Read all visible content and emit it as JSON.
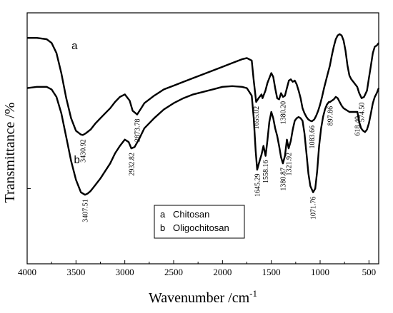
{
  "chart_data": {
    "type": "line",
    "title": "",
    "xlabel": "Wavenumber /cm",
    "xlabel_superscript": "-1",
    "ylabel": "Transmittance /%",
    "xlim": [
      4000,
      400
    ],
    "x_reversed": true,
    "x_ticks": [
      4000,
      3500,
      3000,
      2500,
      2000,
      1500,
      1000,
      500
    ],
    "x_tick_labels": [
      "4000",
      "3500",
      "3000",
      "2500",
      "2000",
      "1500",
      "1000",
      "500"
    ],
    "ylim": [
      0,
      100
    ],
    "y_ticks": [
      90,
      30
    ],
    "grid": false,
    "legend_placement": "bottom-center",
    "series": [
      {
        "name": "Chitosan",
        "label": "a",
        "x": [
          4000,
          3900,
          3800,
          3750,
          3700,
          3650,
          3600,
          3550,
          3500,
          3450,
          3430,
          3400,
          3350,
          3300,
          3250,
          3200,
          3150,
          3100,
          3050,
          3000,
          2950,
          2920,
          2874,
          2840,
          2800,
          2700,
          2600,
          2500,
          2400,
          2300,
          2200,
          2100,
          2000,
          1900,
          1800,
          1750,
          1700,
          1680,
          1655,
          1630,
          1600,
          1590,
          1560,
          1540,
          1520,
          1500,
          1480,
          1460,
          1440,
          1420,
          1400,
          1380,
          1360,
          1340,
          1320,
          1300,
          1280,
          1260,
          1240,
          1220,
          1200,
          1180,
          1160,
          1140,
          1120,
          1100,
          1084,
          1060,
          1040,
          1020,
          1000,
          980,
          960,
          940,
          920,
          900,
          880,
          860,
          840,
          820,
          800,
          780,
          760,
          740,
          720,
          700,
          680,
          660,
          640,
          620,
          600,
          575,
          550,
          520,
          500,
          480,
          460,
          440,
          420,
          400
        ],
        "y": [
          90,
          90,
          89.5,
          88,
          84,
          76,
          66,
          58,
          53,
          51.5,
          51.3,
          52,
          53.5,
          56,
          58,
          60,
          62,
          64.5,
          66.5,
          67.5,
          65,
          61,
          59.5,
          61.5,
          64,
          67,
          69.5,
          71,
          72.5,
          74,
          75.5,
          77,
          78.5,
          80,
          81.5,
          82,
          81,
          73,
          64.5,
          66,
          67.5,
          66,
          69,
          72,
          74,
          76,
          74.5,
          70,
          66,
          65.5,
          68,
          66.5,
          67,
          70,
          73,
          73.5,
          72.5,
          73,
          71.5,
          69,
          66,
          62,
          60,
          58.5,
          57.5,
          57,
          56.8,
          57.5,
          59,
          61,
          63.5,
          66.5,
          70,
          73,
          76,
          79,
          83,
          86.5,
          89.5,
          91,
          91.5,
          91,
          89,
          85,
          79,
          75,
          73.5,
          72.5,
          71.5,
          70.5,
          68,
          66,
          66.5,
          69,
          74,
          79,
          84,
          86.5,
          87,
          88
        ]
      },
      {
        "name": "Oligochitosan",
        "label": "b",
        "x": [
          4000,
          3900,
          3800,
          3750,
          3700,
          3650,
          3600,
          3550,
          3500,
          3450,
          3407,
          3380,
          3350,
          3300,
          3250,
          3200,
          3150,
          3100,
          3050,
          3000,
          2960,
          2933,
          2900,
          2850,
          2800,
          2700,
          2600,
          2500,
          2400,
          2300,
          2200,
          2100,
          2000,
          1900,
          1800,
          1750,
          1700,
          1680,
          1660,
          1645,
          1620,
          1600,
          1580,
          1558,
          1540,
          1520,
          1500,
          1480,
          1460,
          1440,
          1420,
          1400,
          1381,
          1360,
          1340,
          1322,
          1300,
          1280,
          1260,
          1240,
          1220,
          1200,
          1180,
          1160,
          1140,
          1120,
          1100,
          1072,
          1050,
          1030,
          1010,
          990,
          970,
          950,
          930,
          910,
          898,
          880,
          860,
          840,
          820,
          800,
          780,
          760,
          740,
          720,
          700,
          680,
          660,
          640,
          618,
          600,
          580,
          560,
          540,
          520,
          500,
          480,
          460,
          440,
          420,
          400
        ],
        "y": [
          70,
          70.5,
          70.5,
          69.5,
          66.5,
          60,
          50.5,
          41,
          33.5,
          28.5,
          27.5,
          28,
          29,
          31.5,
          34,
          37,
          40,
          44,
          47,
          49.5,
          48.5,
          46,
          46.5,
          50,
          54,
          58,
          61.5,
          64,
          66,
          67.5,
          68.5,
          69.5,
          70.5,
          70.8,
          70.5,
          70,
          67,
          58,
          45,
          37.5,
          41,
          43.5,
          47,
          43,
          49,
          56.5,
          60.5,
          58,
          54,
          51,
          47,
          42.5,
          40,
          43,
          49.5,
          46,
          49,
          53.5,
          57,
          58,
          58.5,
          58,
          57,
          52,
          44,
          36,
          31,
          28.5,
          30,
          37,
          47,
          54,
          58.5,
          61.5,
          63.5,
          64.5,
          64.5,
          65,
          65.5,
          66.5,
          66,
          64.5,
          63,
          62,
          61.5,
          61,
          60.5,
          60.5,
          60.5,
          60.5,
          60.5,
          56.5,
          54,
          53,
          52.5,
          53.5,
          56,
          60,
          64,
          66.5,
          68,
          70
        ]
      }
    ],
    "curve_labels": [
      {
        "text": "a",
        "series": "Chitosan"
      },
      {
        "text": "b",
        "series": "Oligochitosan"
      }
    ],
    "annotations": [
      {
        "text": "3430.92",
        "x": 3430.92,
        "series": "Chitosan"
      },
      {
        "text": "2873.78",
        "x": 2873.78,
        "series": "Chitosan"
      },
      {
        "text": "1655.02",
        "x": 1655.02,
        "series": "Chitosan"
      },
      {
        "text": "1380.20",
        "x": 1380.2,
        "series": "Chitosan"
      },
      {
        "text": "1083.66",
        "x": 1083.66,
        "series": "Chitosan"
      },
      {
        "text": "574.50",
        "x": 574.5,
        "series": "Chitosan"
      },
      {
        "text": "3407.51",
        "x": 3407.51,
        "series": "Oligochitosan"
      },
      {
        "text": "2932.82",
        "x": 2932.82,
        "series": "Oligochitosan"
      },
      {
        "text": "1645.29",
        "x": 1645.29,
        "series": "Oligochitosan"
      },
      {
        "text": "1558.16",
        "x": 1558.16,
        "series": "Oligochitosan"
      },
      {
        "text": "1380.87",
        "x": 1380.87,
        "series": "Oligochitosan"
      },
      {
        "text": "1321.92",
        "x": 1321.92,
        "series": "Oligochitosan"
      },
      {
        "text": "1071.76",
        "x": 1071.76,
        "series": "Oligochitosan"
      },
      {
        "text": "897.86",
        "x": 897.86,
        "series": "Oligochitosan"
      },
      {
        "text": "618.40",
        "x": 618.4,
        "series": "Oligochitosan"
      }
    ],
    "legend": [
      {
        "key": "a",
        "text": "Chitosan"
      },
      {
        "key": "b",
        "text": "Oligochitosan"
      }
    ]
  }
}
